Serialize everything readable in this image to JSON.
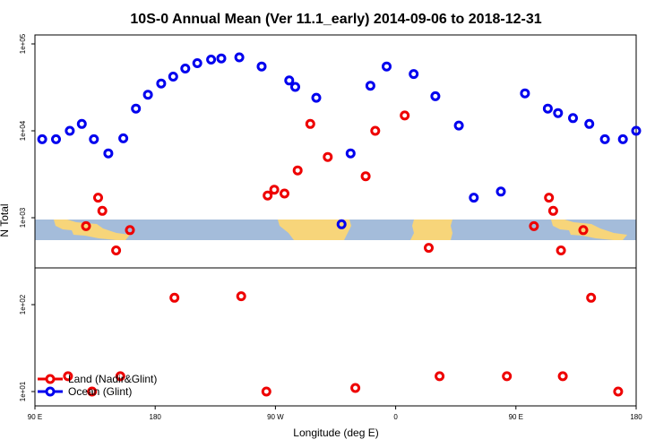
{
  "chart_data": {
    "type": "scatter",
    "title": "10S-0 Annual Mean (Ver 11.1_early)   2014-09-06 to 2018-12-31",
    "xlabel": "Longitude (deg E)",
    "ylabel": "N Total",
    "x_ticks": [
      "90 E",
      "180",
      "90 W",
      "0",
      "90 E",
      "180"
    ],
    "y_ticks": [
      "1e+01",
      "1e+02",
      "1e+03",
      "1e+04",
      "1e+05"
    ],
    "y_scale": "log",
    "ylim": [
      10,
      100000
    ],
    "background_map": "land/ocean strip for latitudes 10S-0",
    "colors": {
      "land": "#ee0000",
      "ocean": "#0000ee",
      "map_ocean": "#a4bcda",
      "map_land": "#f7d57a"
    },
    "legend_placement": "bottom-left",
    "series": [
      {
        "name": "Land (Nadir&Glint)",
        "color": "#ee0000",
        "x": [
          0.055,
          0.085,
          0.095,
          0.105,
          0.112,
          0.135,
          0.142,
          0.158,
          0.232,
          0.343,
          0.385,
          0.387,
          0.398,
          0.415,
          0.437,
          0.458,
          0.487,
          0.533,
          0.55,
          0.566,
          0.615,
          0.655,
          0.673,
          0.785,
          0.83,
          0.855,
          0.862,
          0.875,
          0.878,
          0.912,
          0.925,
          0.97
        ],
        "y": [
          15,
          800,
          10,
          1700,
          1200,
          420,
          15,
          720,
          120,
          125,
          10,
          1800,
          2100,
          1900,
          3500,
          12000,
          5000,
          11,
          3000,
          10000,
          15000,
          450,
          15,
          15,
          800,
          1700,
          1200,
          420,
          15,
          720,
          120,
          10
        ]
      },
      {
        "name": "Ocean (Glint)",
        "color": "#0000ee",
        "x": [
          0.012,
          0.035,
          0.058,
          0.078,
          0.098,
          0.122,
          0.147,
          0.168,
          0.188,
          0.21,
          0.23,
          0.25,
          0.27,
          0.293,
          0.31,
          0.34,
          0.377,
          0.423,
          0.433,
          0.468,
          0.51,
          0.525,
          0.558,
          0.585,
          0.63,
          0.666,
          0.705,
          0.73,
          0.775,
          0.815,
          0.853,
          0.87,
          0.895,
          0.922,
          0.948,
          0.978,
          1.0
        ],
        "y": [
          8000,
          8000,
          10000,
          12000,
          8000,
          5500,
          8200,
          18000,
          26000,
          35000,
          42000,
          52000,
          60000,
          66000,
          68000,
          70000,
          55000,
          38000,
          32000,
          24000,
          840,
          5500,
          33000,
          55000,
          45000,
          25000,
          11500,
          1700,
          2000,
          27000,
          18000,
          16000,
          14000,
          12000,
          8000,
          8000,
          10000
        ]
      }
    ]
  }
}
